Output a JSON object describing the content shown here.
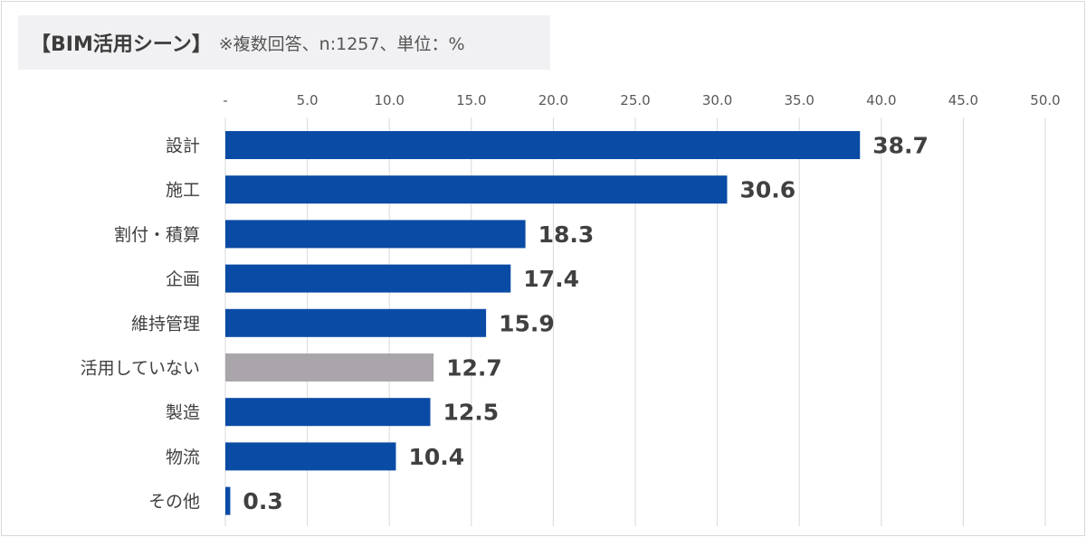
{
  "title": {
    "main": "【BIM活用シーン】",
    "sub": "※複数回答、n:1257、単位：%"
  },
  "colors": {
    "primary_bar": "#0a4ba5",
    "highlight_bar": "#aaa5aa",
    "gridline": "#d9d9d9",
    "title_background": "#f1f0f2"
  },
  "chart_data": {
    "type": "bar",
    "orientation": "horizontal",
    "title": "【BIM活用シーン】",
    "subtitle": "※複数回答、n:1257、単位：%",
    "xlim": [
      0,
      50
    ],
    "x_ticks": [
      0,
      5,
      10,
      15,
      20,
      25,
      30,
      35,
      40,
      45,
      50
    ],
    "x_tick_labels": [
      "-",
      "5.0",
      "10.0",
      "15.0",
      "20.0",
      "25.0",
      "30.0",
      "35.0",
      "40.0",
      "45.0",
      "50.0"
    ],
    "axis_position": "top",
    "grid": true,
    "categories": [
      "設計",
      "施工",
      "割付・積算",
      "企画",
      "維持管理",
      "活用していない",
      "製造",
      "物流",
      "その他"
    ],
    "values": [
      38.7,
      30.6,
      18.3,
      17.4,
      15.9,
      12.7,
      12.5,
      10.4,
      0.3
    ],
    "value_labels": [
      "38.7",
      "30.6",
      "18.3",
      "17.4",
      "15.9",
      "12.7",
      "12.5",
      "10.4",
      "0.3"
    ],
    "highlight_category": "活用していない"
  }
}
